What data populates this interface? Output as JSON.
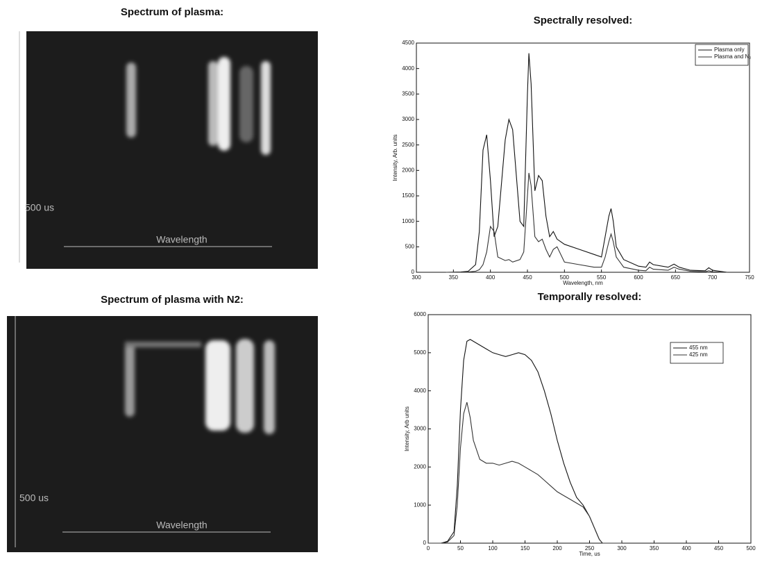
{
  "images": [
    {
      "title": "Spectrum of plasma:",
      "time_label": "500 us",
      "axis_label": "Wavelength"
    },
    {
      "title": "Spectrum of plasma with N2:",
      "time_label": "500 us",
      "axis_label": "Wavelength"
    }
  ],
  "chart_data": [
    {
      "type": "line",
      "title": "Spectrally resolved:",
      "xlabel": "Wavelength, nm",
      "ylabel": "Intensity, Arb. units",
      "x": [
        340,
        360,
        370,
        380,
        385,
        390,
        395,
        400,
        405,
        410,
        420,
        425,
        430,
        440,
        445,
        450,
        452,
        455,
        460,
        465,
        470,
        475,
        480,
        485,
        490,
        500,
        520,
        540,
        550,
        555,
        560,
        563,
        566,
        570,
        580,
        600,
        610,
        615,
        620,
        640,
        648,
        655,
        670,
        690,
        695,
        700,
        720
      ],
      "series": [
        {
          "name": "Plasma only",
          "color": "#111111",
          "values": [
            0,
            5,
            20,
            150,
            800,
            2400,
            2700,
            1800,
            700,
            900,
            2600,
            3000,
            2800,
            1000,
            900,
            3500,
            4300,
            3700,
            1600,
            1900,
            1800,
            1100,
            700,
            800,
            650,
            550,
            450,
            350,
            300,
            700,
            1100,
            1250,
            1000,
            500,
            250,
            120,
            100,
            200,
            150,
            100,
            160,
            100,
            40,
            30,
            90,
            40,
            0
          ]
        },
        {
          "name": "Plasma and N₂",
          "color": "#333333",
          "values": [
            0,
            0,
            5,
            20,
            50,
            150,
            400,
            900,
            800,
            300,
            230,
            250,
            200,
            250,
            400,
            1500,
            1950,
            1700,
            700,
            600,
            650,
            450,
            300,
            450,
            500,
            200,
            150,
            100,
            100,
            300,
            600,
            750,
            600,
            300,
            100,
            40,
            30,
            100,
            60,
            40,
            100,
            60,
            20,
            10,
            30,
            10,
            0
          ]
        }
      ],
      "xlim": [
        300,
        750
      ],
      "xticks": [
        300,
        350,
        400,
        450,
        500,
        550,
        600,
        650,
        700,
        750
      ],
      "ylim": [
        0,
        4500
      ],
      "yticks": [
        0,
        500,
        1000,
        1500,
        2000,
        2500,
        3000,
        3500,
        4000,
        4500
      ],
      "legend": "upper right"
    },
    {
      "type": "line",
      "title": "Temporally resolved:",
      "xlabel": "Time, us",
      "ylabel": "Intensity, Arb units",
      "x": [
        0,
        20,
        30,
        40,
        45,
        50,
        55,
        60,
        65,
        70,
        80,
        90,
        100,
        110,
        120,
        130,
        140,
        150,
        160,
        170,
        180,
        190,
        200,
        210,
        220,
        230,
        240,
        250,
        260,
        265,
        270,
        280,
        300
      ],
      "series": [
        {
          "name": "455 nm",
          "color": "#111111",
          "values": [
            0,
            0,
            50,
            300,
            1500,
            3500,
            4800,
            5300,
            5350,
            5300,
            5200,
            5100,
            5000,
            4950,
            4900,
            4950,
            5000,
            4950,
            4800,
            4500,
            4000,
            3400,
            2700,
            2100,
            1600,
            1200,
            1000,
            700,
            300,
            100,
            0,
            0,
            0
          ]
        },
        {
          "name": "425 nm",
          "color": "#333333",
          "values": [
            0,
            0,
            30,
            200,
            1000,
            2500,
            3400,
            3700,
            3300,
            2700,
            2200,
            2100,
            2100,
            2050,
            2100,
            2150,
            2100,
            2000,
            1900,
            1800,
            1650,
            1500,
            1350,
            1250,
            1150,
            1050,
            950,
            700,
            300,
            100,
            0,
            0,
            0
          ]
        }
      ],
      "xlim": [
        0,
        500
      ],
      "xticks": [
        0,
        50,
        100,
        150,
        200,
        250,
        300,
        350,
        400,
        450,
        500
      ],
      "ylim": [
        0,
        6000
      ],
      "yticks": [
        0,
        1000,
        2000,
        3000,
        4000,
        5000,
        6000
      ],
      "legend": "upper right"
    }
  ]
}
